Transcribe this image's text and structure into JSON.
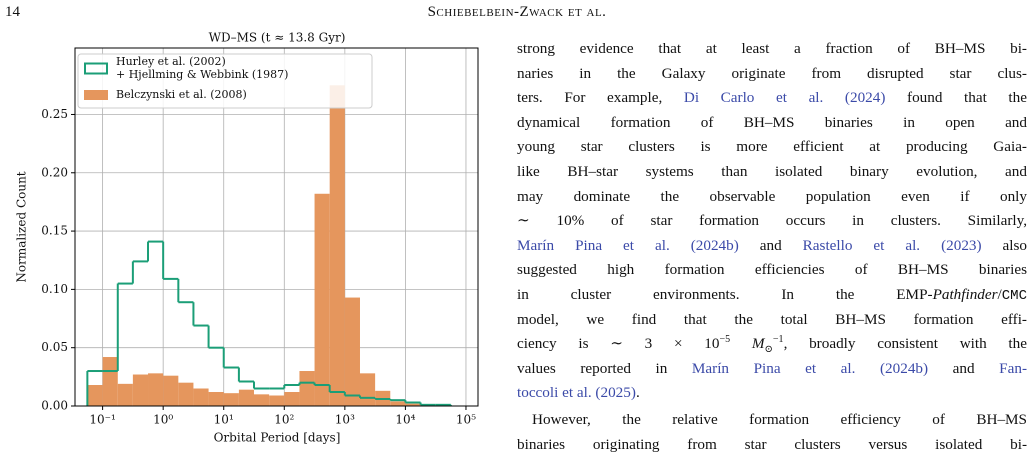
{
  "header": {
    "page": "14",
    "running_head": "Schiebelbein-Zwack et al."
  },
  "chart_data": {
    "type": "histogram",
    "title": "WD–MS (t ≈ 13.8 Gyr)",
    "xlabel": "Orbital Period [days]",
    "ylabel": "Normalized Count",
    "xscale": "log",
    "grid": true,
    "legend": "upper left",
    "xlim": [
      0.035,
      158000
    ],
    "ylim": [
      0,
      0.307
    ],
    "xticks": [
      {
        "value": 0.1,
        "label": "10⁻¹"
      },
      {
        "value": 1,
        "label": "10⁰"
      },
      {
        "value": 10,
        "label": "10¹"
      },
      {
        "value": 100,
        "label": "10²"
      },
      {
        "value": 1000,
        "label": "10³"
      },
      {
        "value": 10000,
        "label": "10⁴"
      },
      {
        "value": 100000,
        "label": "10⁵"
      }
    ],
    "yticks": [
      {
        "value": 0,
        "label": "0.00"
      },
      {
        "value": 0.05,
        "label": "0.05"
      },
      {
        "value": 0.1,
        "label": "0.10"
      },
      {
        "value": 0.15,
        "label": "0.15"
      },
      {
        "value": 0.2,
        "label": "0.20"
      },
      {
        "value": 0.25,
        "label": "0.25"
      }
    ],
    "bins": [
      0.056,
      0.1,
      0.178,
      0.316,
      0.562,
      1,
      1.78,
      3.16,
      5.62,
      10,
      17.8,
      31.6,
      56.2,
      100,
      178,
      316,
      562,
      1000,
      1778,
      3162,
      5623,
      10000,
      17783,
      31623,
      56234
    ],
    "series": [
      {
        "name": [
          "Hurley et al. (2002)",
          "+ Hjellming & Webbink (1987)"
        ],
        "color": "#1b9e77",
        "style": "step",
        "values": [
          0.03,
          0.03,
          0.105,
          0.124,
          0.141,
          0.109,
          0.089,
          0.069,
          0.05,
          0.033,
          0.021,
          0.015,
          0.015,
          0.018,
          0.02,
          0.018,
          0.012,
          0.009,
          0.007,
          0.006,
          0.005,
          0.003,
          0.001,
          0.001
        ]
      },
      {
        "name": [
          "Belczynski et al. (2008)"
        ],
        "color": "#e5965d",
        "style": "bar",
        "values": [
          0.018,
          0.042,
          0.019,
          0.027,
          0.028,
          0.026,
          0.02,
          0.015,
          0.012,
          0.011,
          0.014,
          0.01,
          0.009,
          0.012,
          0.03,
          0.182,
          0.275,
          0.093,
          0.028,
          0.013,
          0.004,
          0.002,
          0,
          0
        ]
      }
    ]
  },
  "body": {
    "lines": [
      [
        {
          "text": "strong evidence that at least a fraction of BH–MS bi-"
        }
      ],
      [
        {
          "text": "naries in the Galaxy originate from disrupted star clus-"
        }
      ],
      [
        {
          "text": "ters. For example, "
        },
        {
          "text": "Di Carlo et al. (2024)",
          "style": "link"
        },
        {
          "text": " found that the"
        }
      ],
      [
        {
          "text": "dynamical formation of BH–MS binaries in open and"
        }
      ],
      [
        {
          "text": "young star clusters is more efficient at producing Gaia-"
        }
      ],
      [
        {
          "text": "like BH–star systems than isolated binary evolution, and"
        }
      ],
      [
        {
          "text": "may dominate the observable population even if only"
        }
      ],
      [
        {
          "text": "∼ 10% of star formation occurs in clusters. Similarly,"
        }
      ],
      [
        {
          "text": "Marín Pina et al. (2024b)",
          "style": "link"
        },
        {
          "text": " and "
        },
        {
          "text": "Rastello et al. (2023)",
          "style": "link"
        },
        {
          "text": " also"
        }
      ],
      [
        {
          "text": "suggested high formation efficiencies of BH–MS binaries"
        }
      ],
      [
        {
          "text": "in cluster environments. In the EMP-"
        },
        {
          "text": "Pathfinder",
          "style": "i"
        },
        {
          "text": "/"
        },
        {
          "text": "CMC",
          "style": "tt"
        }
      ],
      [
        {
          "text": "model, we find that the total BH–MS formation effi-"
        }
      ],
      [
        {
          "text": "ciency is ∼ 3 × 10"
        },
        {
          "text": "−5",
          "style": "sup"
        },
        {
          "text": " "
        },
        {
          "text": "M",
          "style": "i"
        },
        {
          "text": "⊙",
          "style": "sub"
        },
        {
          "text": "−1",
          "style": "sup"
        },
        {
          "text": ", broadly consistent with the"
        }
      ],
      [
        {
          "text": "values reported in "
        },
        {
          "text": "Marín Pina et al. (2024b)",
          "style": "link"
        },
        {
          "text": " and "
        },
        {
          "text": "Fan-",
          "style": "link"
        }
      ],
      [
        {
          "text": "toccoli et al. (2025)",
          "style": "link"
        },
        {
          "text": "."
        }
      ],
      [
        {
          "text": "However, the relative formation efficiency of BH–MS"
        }
      ],
      [
        {
          "text": "binaries originating from star clusters versus isolated bi-"
        }
      ]
    ]
  }
}
